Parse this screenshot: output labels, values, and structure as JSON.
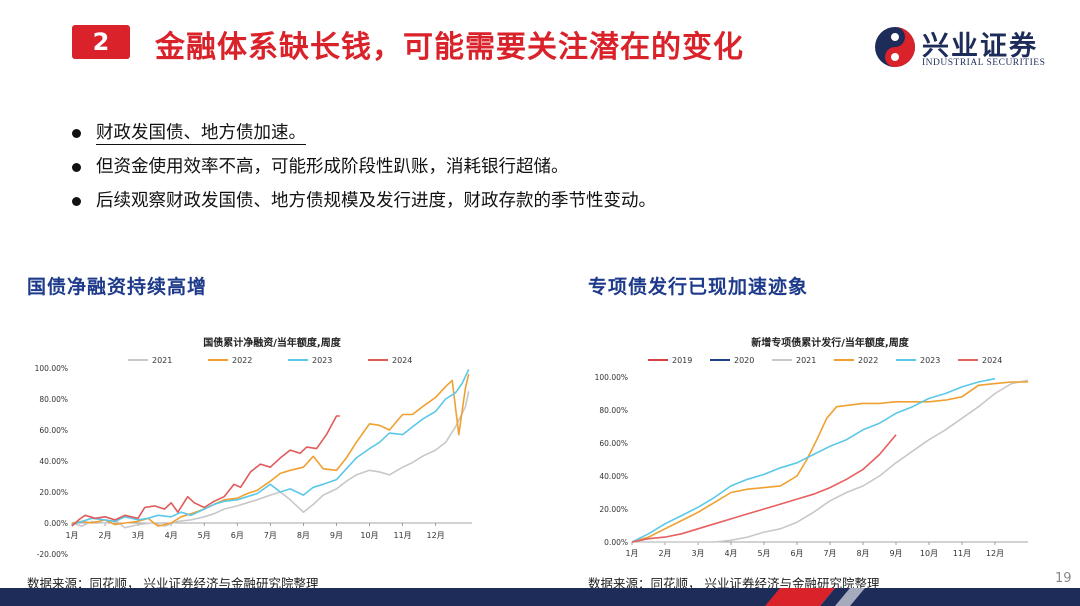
{
  "header": {
    "section_number": "2",
    "title": "金融体系缺长钱，可能需要关注潜在的变化",
    "logo_cn": "兴业证券",
    "logo_en": "INDUSTRIAL SECURITIES"
  },
  "bullets": [
    "财政发国债、地方债加速。",
    "但资金使用效率不高，可能形成阶段性趴账，消耗银行超储。",
    "后续观察财政发国债、地方债规模及发行进度，财政存款的季节性变动。"
  ],
  "left_panel": {
    "heading": "国债净融资持续高增",
    "source": "数据来源：同花顺， 兴业证券经济与金融研究院整理"
  },
  "right_panel": {
    "heading": "专项债发行已现加速迹象",
    "source": "数据来源：同花顺， 兴业证券经济与金融研究院整理"
  },
  "page_number": "19",
  "colors": {
    "brand_red": "#d9222a",
    "brand_navy": "#1e2c5a",
    "heading_blue": "#1e3a8a"
  },
  "chart_data": [
    {
      "type": "line",
      "title": "国债累计净融资/当年额度,周度",
      "y_tick_labels": [
        "-20.00%",
        "0.00%",
        "20.00%",
        "40.00%",
        "60.00%",
        "80.00%",
        "100.00%"
      ],
      "ylim": [
        -20,
        100
      ],
      "x_tick_labels": [
        "1月",
        "2月",
        "3月",
        "4月",
        "5月",
        "6月",
        "7月",
        "8月",
        "9月",
        "10月",
        "11月",
        "12月"
      ],
      "xlim": [
        1,
        13.1
      ],
      "legend_position": "top",
      "series": [
        {
          "name": "2021",
          "color": "#c8c8c8",
          "x": [
            1,
            1.3,
            1.6,
            2,
            2.3,
            2.6,
            3,
            3.4,
            3.8,
            4.2,
            4.6,
            5,
            5.3,
            5.6,
            6,
            6.3,
            6.6,
            7,
            7.3,
            7.6,
            8,
            8.3,
            8.6,
            9,
            9.3,
            9.6,
            10,
            10.3,
            10.6,
            11,
            11.3,
            11.6,
            12,
            12.3,
            12.6,
            12.9,
            13
          ],
          "y": [
            0,
            -2,
            1,
            0,
            2,
            -3,
            -1,
            0,
            -2,
            1,
            2,
            4,
            6,
            9,
            11,
            13,
            15,
            18,
            20,
            15,
            7,
            12,
            18,
            22,
            27,
            31,
            34,
            33,
            31,
            36,
            39,
            43,
            47,
            52,
            62,
            75,
            85
          ]
        },
        {
          "name": "2022",
          "color": "#f0a030",
          "x": [
            1,
            1.3,
            1.6,
            2,
            2.3,
            2.6,
            3,
            3.3,
            3.6,
            4,
            4.3,
            4.6,
            5,
            5.3,
            5.6,
            6,
            6.3,
            6.6,
            7,
            7.3,
            7.6,
            8,
            8.3,
            8.6,
            9,
            9.3,
            9.6,
            10,
            10.3,
            10.6,
            11,
            11.3,
            11.6,
            12,
            12.3,
            12.5,
            12.7,
            12.9,
            13
          ],
          "y": [
            0,
            1,
            0,
            2,
            -1,
            0,
            1,
            3,
            -2,
            0,
            4,
            6,
            9,
            12,
            15,
            16,
            19,
            21,
            27,
            32,
            34,
            36,
            43,
            35,
            34,
            42,
            52,
            64,
            63,
            60,
            70,
            70,
            75,
            81,
            88,
            92,
            57,
            87,
            96
          ]
        },
        {
          "name": "2023",
          "color": "#5bc8e8",
          "x": [
            1,
            1.3,
            1.6,
            2,
            2.3,
            2.6,
            3,
            3.3,
            3.6,
            4,
            4.3,
            4.6,
            5,
            5.3,
            5.6,
            6,
            6.3,
            6.6,
            7,
            7.3,
            7.6,
            8,
            8.3,
            8.6,
            9,
            9.3,
            9.6,
            10,
            10.3,
            10.6,
            11,
            11.3,
            11.6,
            12,
            12.3,
            12.6,
            12.8,
            13
          ],
          "y": [
            -1,
            1,
            3,
            2,
            1,
            4,
            2,
            3,
            5,
            4,
            7,
            5,
            9,
            12,
            14,
            15,
            17,
            19,
            25,
            20,
            22,
            18,
            23,
            25,
            28,
            35,
            42,
            48,
            52,
            58,
            57,
            62,
            67,
            72,
            80,
            84,
            90,
            99
          ]
        },
        {
          "name": "2024",
          "color": "#e05a5a",
          "x": [
            1,
            1.2,
            1.4,
            1.7,
            2,
            2.3,
            2.6,
            3,
            3.2,
            3.5,
            3.8,
            4,
            4.2,
            4.5,
            4.7,
            5,
            5.3,
            5.6,
            5.9,
            6.1,
            6.4,
            6.7,
            7,
            7.3,
            7.6,
            7.9,
            8.1,
            8.4,
            8.7,
            9,
            9.1
          ],
          "y": [
            -2,
            2,
            5,
            3,
            4,
            2,
            5,
            3,
            10,
            11,
            9,
            13,
            7,
            17,
            13,
            10,
            14,
            17,
            25,
            23,
            33,
            38,
            36,
            42,
            47,
            45,
            49,
            48,
            57,
            69,
            69
          ]
        }
      ]
    },
    {
      "type": "line",
      "title": "新增专项债累计发行/当年额度,周度",
      "y_tick_labels": [
        "0.00%",
        "20.00%",
        "40.00%",
        "60.00%",
        "80.00%",
        "100.00%"
      ],
      "ylim": [
        0,
        100
      ],
      "x_tick_labels": [
        "1月",
        "2月",
        "3月",
        "4月",
        "5月",
        "6月",
        "7月",
        "8月",
        "9月",
        "10月",
        "11月",
        "12月"
      ],
      "xlim": [
        1,
        13
      ],
      "legend_position": "top",
      "series": [
        {
          "name": "2019",
          "color": "#d94040",
          "x": [],
          "y": []
        },
        {
          "name": "2020",
          "color": "#1f3e8c",
          "x": [],
          "y": []
        },
        {
          "name": "2021",
          "color": "#c8c8c8",
          "x": [
            1,
            2,
            2.5,
            3,
            3.5,
            4,
            4.5,
            5,
            5.5,
            6,
            6.5,
            7,
            7.5,
            8,
            8.5,
            9,
            9.5,
            10,
            10.5,
            11,
            11.5,
            12,
            12.5,
            13
          ],
          "y": [
            0,
            0,
            0,
            0,
            0,
            1,
            3,
            6,
            8,
            12,
            18,
            25,
            30,
            34,
            40,
            48,
            55,
            62,
            68,
            75,
            82,
            90,
            96,
            98
          ]
        },
        {
          "name": "2022",
          "color": "#f0a030",
          "x": [
            1,
            1.5,
            2,
            2.5,
            3,
            3.5,
            4,
            4.5,
            5,
            5.5,
            6,
            6.3,
            6.6,
            6.9,
            7.2,
            7.6,
            8,
            8.5,
            9,
            9.5,
            10,
            10.5,
            11,
            11.5,
            12,
            12.5,
            13
          ],
          "y": [
            0,
            3,
            8,
            13,
            18,
            24,
            30,
            32,
            33,
            34,
            40,
            50,
            62,
            75,
            82,
            83,
            84,
            84,
            85,
            85,
            85,
            86,
            88,
            95,
            96,
            97,
            97
          ]
        },
        {
          "name": "2023",
          "color": "#5bc8e8",
          "x": [
            1,
            1.5,
            2,
            2.5,
            3,
            3.5,
            4,
            4.5,
            5,
            5.5,
            6,
            6.5,
            7,
            7.5,
            8,
            8.5,
            9,
            9.5,
            10,
            10.5,
            11,
            11.5,
            12
          ],
          "y": [
            0,
            5,
            11,
            16,
            21,
            27,
            34,
            38,
            41,
            45,
            48,
            53,
            58,
            62,
            68,
            72,
            78,
            82,
            87,
            90,
            94,
            97,
            99
          ]
        },
        {
          "name": "2024",
          "color": "#e86060",
          "x": [
            1,
            1.5,
            2,
            2.5,
            3,
            3.5,
            4,
            4.5,
            5,
            5.5,
            6,
            6.5,
            7,
            7.5,
            8,
            8.5,
            9
          ],
          "y": [
            0,
            2,
            3,
            5,
            8,
            11,
            14,
            17,
            20,
            23,
            26,
            29,
            33,
            38,
            44,
            53,
            65
          ]
        }
      ]
    }
  ]
}
